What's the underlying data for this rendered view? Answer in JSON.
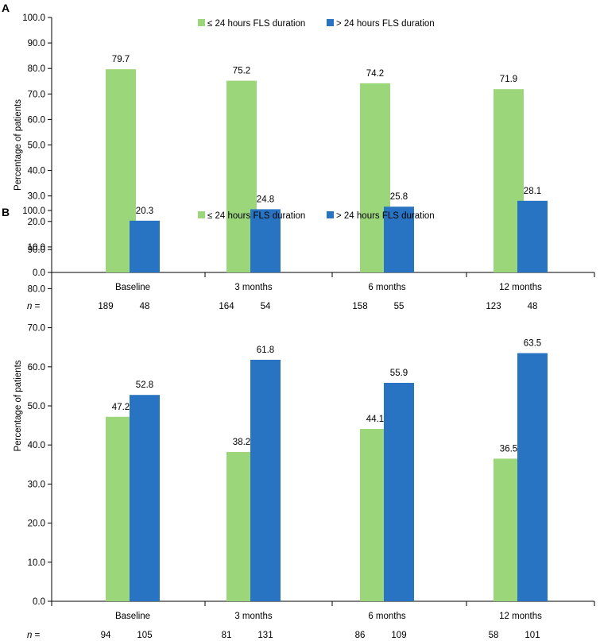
{
  "chart_data": [
    {
      "panel": "A",
      "type": "bar",
      "ylabel": "Percentage of patients",
      "ylim": [
        0,
        100
      ],
      "yticks": [
        "0.0",
        "10.0",
        "20.0",
        "30.0",
        "40.0",
        "50.0",
        "60.0",
        "70.0",
        "80.0",
        "90.0",
        "100.0"
      ],
      "categories": [
        "Baseline",
        "3 months",
        "6 months",
        "12 months"
      ],
      "series": [
        {
          "name": "≤ 24 hours FLS duration",
          "color": "#9cd67a",
          "values": [
            79.7,
            75.2,
            74.2,
            71.9
          ],
          "labels": [
            "79.7",
            "75.2",
            "74.2",
            "71.9"
          ]
        },
        {
          "name": "> 24 hours FLS duration",
          "color": "#2873c2",
          "values": [
            20.3,
            24.8,
            25.8,
            28.1
          ],
          "labels": [
            "20.3",
            "24.8",
            "25.8",
            "28.1"
          ]
        }
      ],
      "n_label": "n =",
      "n_values": [
        [
          "189",
          "48"
        ],
        [
          "164",
          "54"
        ],
        [
          "158",
          "55"
        ],
        [
          "123",
          "48"
        ]
      ],
      "legend_position": "top-center",
      "grid": false
    },
    {
      "panel": "B",
      "type": "bar",
      "ylabel": "Percentage of patients",
      "ylim": [
        0,
        100
      ],
      "yticks": [
        "0.0",
        "10.0",
        "20.0",
        "30.0",
        "40.0",
        "50.0",
        "60.0",
        "70.0",
        "80.0",
        "90.0",
        "100.0"
      ],
      "categories": [
        "Baseline",
        "3 months",
        "6 months",
        "12 months"
      ],
      "series": [
        {
          "name": "≤ 24 hours FLS duration",
          "color": "#9cd67a",
          "values": [
            47.2,
            38.2,
            44.1,
            36.5
          ],
          "labels": [
            "47.2",
            "38.2",
            "44.1",
            "36.5"
          ]
        },
        {
          "name": "> 24 hours FLS duration",
          "color": "#2873c2",
          "values": [
            52.8,
            61.8,
            55.9,
            63.5
          ],
          "labels": [
            "52.8",
            "61.8",
            "55.9",
            "63.5"
          ]
        }
      ],
      "n_label": "n =",
      "n_values": [
        [
          "94",
          "105"
        ],
        [
          "81",
          "131"
        ],
        [
          "86",
          "109"
        ],
        [
          "58",
          "101"
        ]
      ],
      "legend_position": "top-center",
      "grid": false
    }
  ]
}
